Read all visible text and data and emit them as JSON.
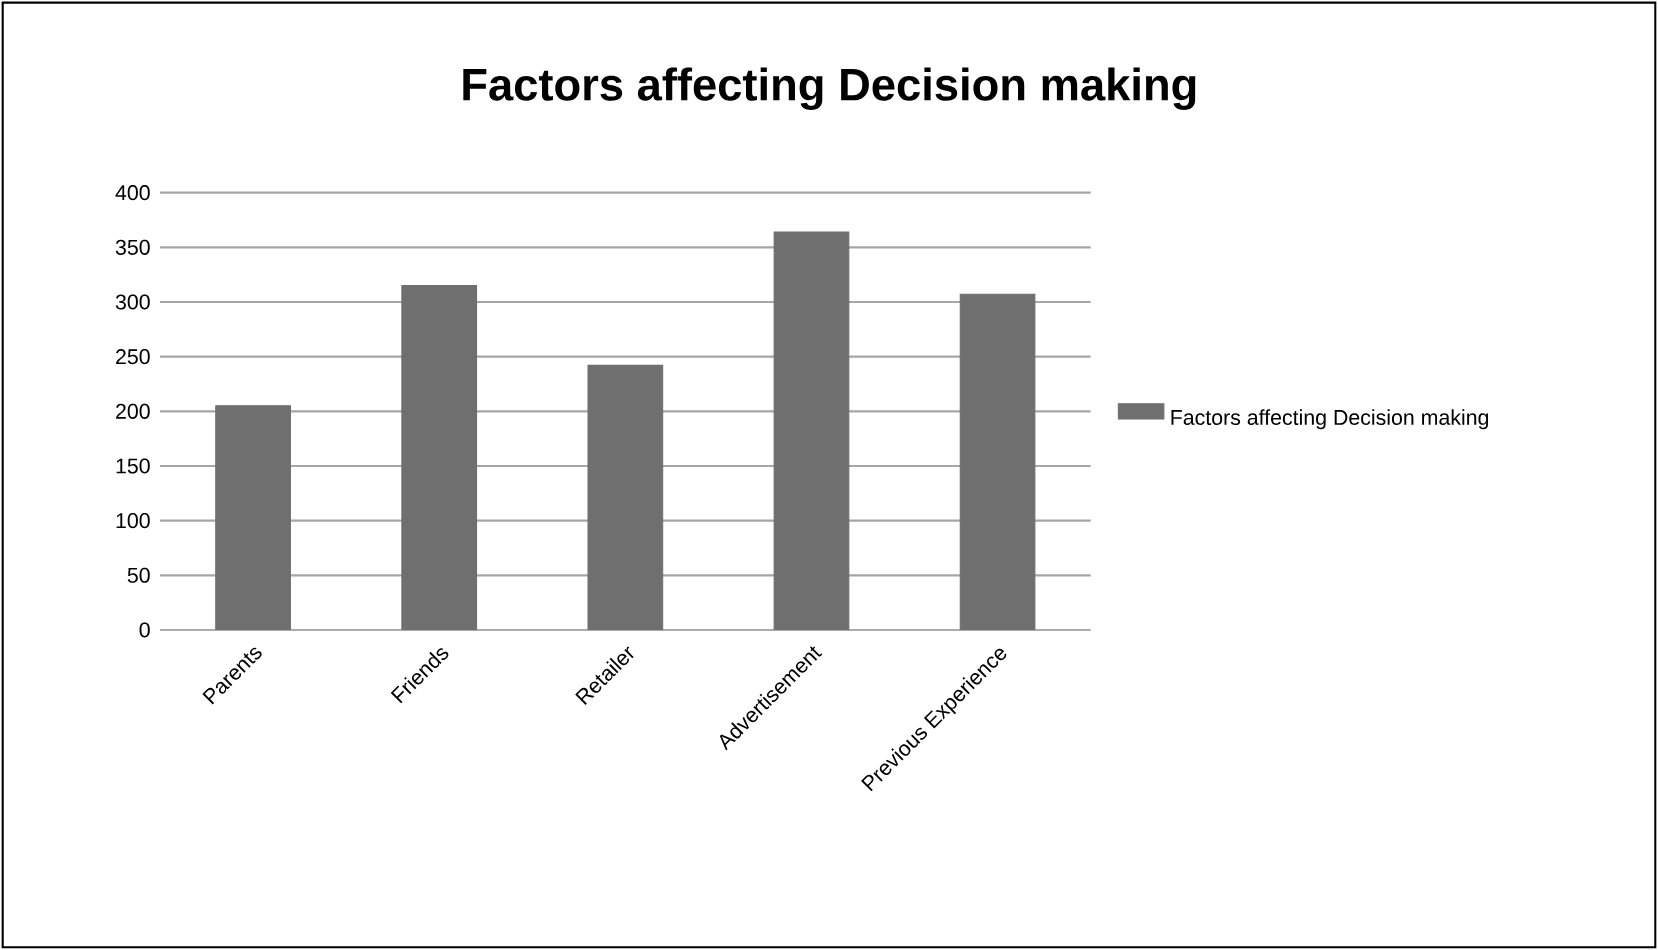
{
  "chart_data": {
    "type": "bar",
    "title": "Factors affecting Decision making",
    "categories": [
      "Parents",
      "Friends",
      "Retailer",
      "Advertisement",
      "Previous Experience"
    ],
    "series": [
      {
        "name": "Factors affecting Decision making",
        "color": "#6f6f6f",
        "values": [
          205,
          315,
          242,
          364,
          307
        ]
      }
    ],
    "ylim": [
      0,
      400
    ],
    "yticks": [
      0,
      50,
      100,
      150,
      200,
      250,
      300,
      350,
      400
    ],
    "grid": "y",
    "legend": "right"
  }
}
